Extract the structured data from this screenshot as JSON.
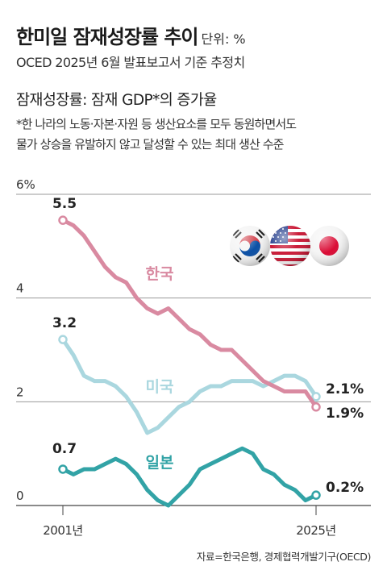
{
  "header": {
    "title": "한미일 잠재성장률 추이",
    "unit": "단위: %",
    "subtitle": "OCED 2025년 6월 발표보고서 기준 추정치"
  },
  "definition": {
    "heading": "잠재성장률: 잠재 GDP*의 증가율",
    "line1": "*한 나라의 노동·자본·자원 등 생산요소를 모두 동원하면서도",
    "line2": "물가 상승을 유발하지 않고 달성할 수 있는 최대 생산 수준"
  },
  "source": "자료=한국은행, 경제협력개발기구(OECD)",
  "flags": [
    {
      "name": "south-korea-flag-icon"
    },
    {
      "name": "usa-flag-icon"
    },
    {
      "name": "japan-flag-icon"
    }
  ],
  "chart_data": {
    "type": "line",
    "yticks": [
      {
        "value": 0,
        "label": "0"
      },
      {
        "value": 2,
        "label": "2"
      },
      {
        "value": 4,
        "label": "4"
      },
      {
        "value": 6,
        "label": "6%"
      }
    ],
    "ylim": [
      0,
      6
    ],
    "xlim": [
      2001,
      2025
    ],
    "xticks": [
      {
        "value": 2001,
        "label": "2001년"
      },
      {
        "value": 2025,
        "label": "2025년"
      }
    ],
    "grid": true,
    "series": [
      {
        "name": "한국",
        "color": "#d98aa1",
        "x": [
          2001,
          2002,
          2003,
          2004,
          2005,
          2006,
          2007,
          2008,
          2009,
          2010,
          2011,
          2012,
          2013,
          2014,
          2015,
          2016,
          2017,
          2018,
          2019,
          2020,
          2021,
          2022,
          2023,
          2024,
          2025
        ],
        "values": [
          5.5,
          5.4,
          5.2,
          4.9,
          4.6,
          4.4,
          4.3,
          4.0,
          3.8,
          3.7,
          3.8,
          3.6,
          3.4,
          3.3,
          3.1,
          3.0,
          3.0,
          2.8,
          2.6,
          2.4,
          2.3,
          2.2,
          2.2,
          2.2,
          1.9
        ],
        "start_label": "5.5",
        "end_label": "1.9%"
      },
      {
        "name": "미국",
        "color": "#aad7df",
        "x": [
          2001,
          2002,
          2003,
          2004,
          2005,
          2006,
          2007,
          2008,
          2009,
          2010,
          2011,
          2012,
          2013,
          2014,
          2015,
          2016,
          2017,
          2018,
          2019,
          2020,
          2021,
          2022,
          2023,
          2024,
          2025
        ],
        "values": [
          3.2,
          2.9,
          2.5,
          2.4,
          2.4,
          2.3,
          2.1,
          1.8,
          1.4,
          1.5,
          1.7,
          1.9,
          2.0,
          2.2,
          2.3,
          2.3,
          2.4,
          2.4,
          2.4,
          2.3,
          2.4,
          2.5,
          2.5,
          2.4,
          2.1
        ],
        "start_label": "3.2",
        "end_label": "2.1%"
      },
      {
        "name": "일본",
        "color": "#32a3a6",
        "x": [
          2001,
          2002,
          2003,
          2004,
          2005,
          2006,
          2007,
          2008,
          2009,
          2010,
          2011,
          2012,
          2013,
          2014,
          2015,
          2016,
          2017,
          2018,
          2019,
          2020,
          2021,
          2022,
          2023,
          2024,
          2025
        ],
        "values": [
          0.7,
          0.6,
          0.7,
          0.7,
          0.8,
          0.9,
          0.8,
          0.6,
          0.3,
          0.1,
          0.0,
          0.2,
          0.4,
          0.7,
          0.8,
          0.9,
          1.0,
          1.1,
          1.0,
          0.7,
          0.6,
          0.4,
          0.3,
          0.1,
          0.2
        ],
        "start_label": "0.7",
        "end_label": "0.2%"
      }
    ]
  }
}
